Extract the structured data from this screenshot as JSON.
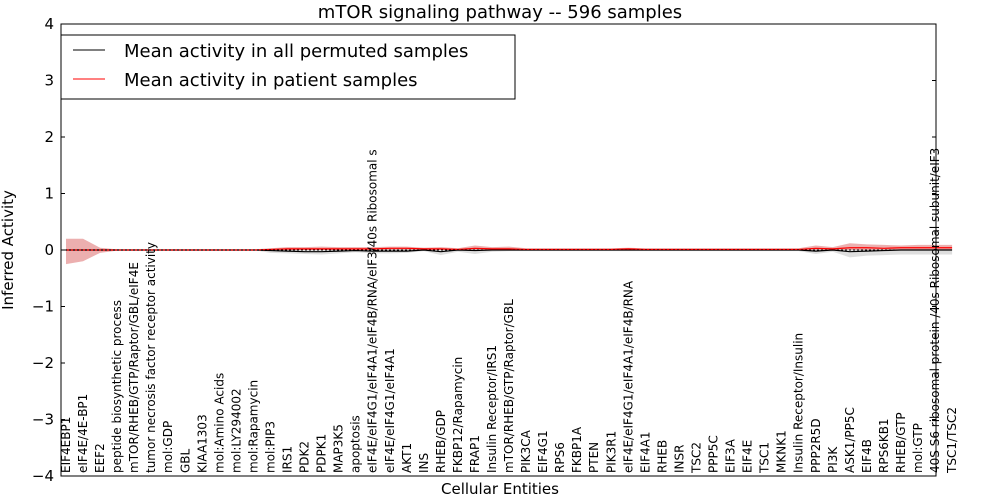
{
  "chart_data": {
    "type": "line",
    "title": "mTOR signaling pathway -- 596 samples",
    "xlabel": "Cellular Entities",
    "ylabel": "Inferred Activity",
    "ylim": [
      -4,
      4
    ],
    "yticks": [
      -4,
      -3,
      -2,
      -1,
      0,
      1,
      2,
      3,
      4
    ],
    "ytick_labels": [
      "−4",
      "−3",
      "−2",
      "−1",
      "0",
      "1",
      "2",
      "3",
      "4"
    ],
    "legend_position": "top-left",
    "categories": [
      "EIF4EBP1",
      "eIF4E/4E-BP1",
      "EEF2",
      "peptide biosynthetic process",
      "mTOR/RHEB/GTP/Raptor/GBL/eIF4E",
      "tumor necrosis factor receptor activity",
      "mol:GDP",
      "GBL",
      "KIAA1303",
      "mol:Amino Acids",
      "mol:LY294002",
      "mol:Rapamycin",
      "mol:PIP3",
      "IRS1",
      "PDK2",
      "PDPK1",
      "MAP3K5",
      "apoptosis",
      "eIF4E/eIF4G1/eIF4A1/eIF4B/RNA/eIF3/40s Ribosomal s",
      "eIF4E/eIF4G1/eIF4A1",
      "AKT1",
      "INS",
      "RHEB/GDP",
      "FKBP12/Rapamycin",
      "FRAP1",
      "Insulin Receptor/IRS1",
      "mTOR/RHEB/GTP/Raptor/GBL",
      "PIK3CA",
      "EIF4G1",
      "RPS6",
      "FKBP1A",
      "PTEN",
      "PIK3R1",
      "eIF4E/eIF4G1/eIF4A1/eIF4B/RNA",
      "EIF4A1",
      "RHEB",
      "INSR",
      "TSC2",
      "PPP5C",
      "EIF3A",
      "EIF4E",
      "TSC1",
      "MKNK1",
      "Insulin Receptor/Insulin",
      "PPP2R5D",
      "PI3K",
      "ASK1/PP5C",
      "EIF4B",
      "RPS6KB1",
      "RHEB/GTP",
      "mol:GTP",
      "40S S6 ribosomal protein /40s Ribosomal subunit/eIF3",
      "TSC1/TSC2"
    ],
    "series": [
      {
        "name": "Mean activity in all permuted samples",
        "color": "#000000",
        "band_color": "#c8c8c8",
        "values": [
          0,
          0,
          0,
          0,
          0,
          0,
          0,
          0,
          0,
          0,
          0,
          0,
          -0.01,
          -0.02,
          -0.03,
          -0.03,
          -0.02,
          -0.01,
          -0.02,
          -0.02,
          -0.02,
          0,
          -0.03,
          0,
          -0.01,
          0,
          0,
          0,
          0,
          0,
          0,
          0,
          0,
          0,
          0,
          0,
          0,
          0,
          0,
          0,
          0,
          0,
          0,
          0,
          -0.02,
          0,
          -0.03,
          -0.02,
          -0.01,
          0,
          0,
          0,
          0
        ],
        "band_lower": [
          0,
          0,
          0,
          0,
          0,
          0,
          0,
          0,
          0,
          0,
          0,
          0,
          -0.05,
          -0.06,
          -0.07,
          -0.08,
          -0.06,
          -0.04,
          -0.06,
          -0.06,
          -0.05,
          -0.02,
          -0.09,
          -0.03,
          -0.07,
          -0.03,
          -0.02,
          -0.02,
          -0.02,
          -0.02,
          -0.02,
          -0.02,
          -0.02,
          -0.02,
          -0.02,
          -0.02,
          -0.02,
          -0.02,
          -0.02,
          -0.02,
          -0.02,
          -0.02,
          -0.02,
          -0.02,
          -0.07,
          -0.03,
          -0.13,
          -0.1,
          -0.09,
          -0.08,
          -0.08,
          -0.08,
          -0.08
        ],
        "band_upper": [
          0,
          0,
          0,
          0,
          0,
          0,
          0,
          0,
          0,
          0,
          0,
          0,
          0.01,
          0.01,
          0.01,
          0.01,
          0.01,
          0.01,
          0.01,
          0.01,
          0.01,
          0.01,
          0.01,
          0.01,
          0.01,
          0.01,
          0.01,
          0.01,
          0.01,
          0.01,
          0.01,
          0.01,
          0.01,
          0.01,
          0.01,
          0.01,
          0.01,
          0.01,
          0.01,
          0.01,
          0.01,
          0.01,
          0.01,
          0.01,
          0.01,
          0.01,
          0.01,
          0.01,
          0.01,
          0.01,
          0.01,
          0.01,
          0.01
        ]
      },
      {
        "name": "Mean activity in patient samples",
        "color": "#ff0000",
        "band_color": "#e07a7a",
        "values": [
          0,
          0,
          0,
          0,
          0,
          0,
          0,
          0,
          0,
          0,
          0,
          0,
          0.01,
          0.02,
          0.02,
          0.02,
          0.02,
          0.02,
          0.02,
          0.03,
          0.03,
          0.02,
          0.02,
          0.01,
          0.03,
          0.02,
          0.02,
          0.01,
          0.01,
          0.01,
          0.01,
          0.01,
          0.01,
          0.02,
          0.01,
          0.01,
          0.01,
          0.01,
          0.01,
          0.01,
          0.01,
          0.01,
          0.01,
          0.01,
          0.03,
          0.02,
          0.04,
          0.04,
          0.03,
          0.04,
          0.04,
          0.04,
          0.04
        ],
        "band_lower": [
          -0.25,
          -0.2,
          -0.05,
          -0.01,
          -0.01,
          -0.01,
          -0.01,
          -0.01,
          -0.01,
          -0.01,
          -0.01,
          -0.01,
          0,
          0,
          0,
          0,
          0,
          0,
          0,
          0,
          0,
          0,
          0,
          0,
          0,
          0,
          0,
          0,
          0,
          0,
          0,
          0,
          0,
          0,
          0,
          0,
          0,
          0,
          0,
          0,
          0,
          0,
          0,
          0,
          0,
          0,
          0,
          0,
          0,
          0,
          0,
          0,
          0
        ],
        "band_upper": [
          0.2,
          0.2,
          0.04,
          0.01,
          0.01,
          0.01,
          0.01,
          0.01,
          0.01,
          0.01,
          0.01,
          0.01,
          0.03,
          0.05,
          0.05,
          0.06,
          0.05,
          0.05,
          0.05,
          0.06,
          0.06,
          0.04,
          0.05,
          0.03,
          0.08,
          0.05,
          0.06,
          0.03,
          0.03,
          0.03,
          0.03,
          0.03,
          0.03,
          0.04,
          0.03,
          0.03,
          0.03,
          0.03,
          0.03,
          0.03,
          0.03,
          0.03,
          0.03,
          0.03,
          0.08,
          0.05,
          0.12,
          0.1,
          0.09,
          0.08,
          0.09,
          0.09,
          0.09
        ]
      }
    ]
  }
}
